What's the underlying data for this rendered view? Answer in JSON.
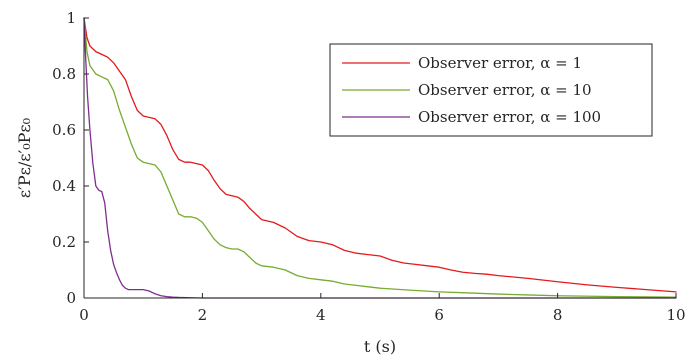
{
  "chart_data": {
    "type": "line",
    "title": "",
    "xlabel": "t (s)",
    "ylabel": "ε′Pε/ε′₀Pε₀",
    "xlim": [
      0,
      10
    ],
    "ylim": [
      0,
      1
    ],
    "xticks": [
      "0",
      "2",
      "4",
      "6",
      "8",
      "10"
    ],
    "yticks": [
      "0",
      "0.2",
      "0.4",
      "0.6",
      "0.8",
      "1"
    ],
    "grid": false,
    "legend_position": "top-right",
    "series": [
      {
        "name": "Observer error, α = 1",
        "color": "#e41a1c",
        "x": [
          0,
          0.05,
          0.1,
          0.2,
          0.3,
          0.4,
          0.5,
          0.6,
          0.7,
          0.8,
          0.9,
          1.0,
          1.1,
          1.2,
          1.3,
          1.4,
          1.5,
          1.6,
          1.7,
          1.8,
          1.9,
          2.0,
          2.1,
          2.2,
          2.3,
          2.4,
          2.5,
          2.6,
          2.7,
          2.8,
          2.9,
          3.0,
          3.2,
          3.4,
          3.6,
          3.8,
          4.0,
          4.2,
          4.4,
          4.6,
          4.8,
          5.0,
          5.2,
          5.4,
          5.6,
          5.8,
          6.0,
          6.2,
          6.4,
          6.6,
          6.8,
          7.0,
          7.5,
          8.0,
          8.5,
          9.0,
          9.5,
          10.0
        ],
        "y": [
          1.0,
          0.93,
          0.9,
          0.88,
          0.87,
          0.86,
          0.84,
          0.81,
          0.78,
          0.72,
          0.67,
          0.65,
          0.645,
          0.64,
          0.62,
          0.58,
          0.53,
          0.495,
          0.485,
          0.485,
          0.48,
          0.475,
          0.455,
          0.42,
          0.39,
          0.37,
          0.365,
          0.36,
          0.345,
          0.32,
          0.3,
          0.28,
          0.27,
          0.25,
          0.22,
          0.205,
          0.2,
          0.19,
          0.17,
          0.16,
          0.155,
          0.15,
          0.135,
          0.125,
          0.12,
          0.115,
          0.11,
          0.1,
          0.092,
          0.088,
          0.085,
          0.08,
          0.07,
          0.058,
          0.047,
          0.038,
          0.03,
          0.022
        ]
      },
      {
        "name": "Observer error, α = 10",
        "color": "#77ac30",
        "x": [
          0,
          0.05,
          0.1,
          0.2,
          0.3,
          0.4,
          0.5,
          0.6,
          0.7,
          0.8,
          0.9,
          1.0,
          1.1,
          1.2,
          1.3,
          1.4,
          1.5,
          1.6,
          1.7,
          1.8,
          1.9,
          2.0,
          2.1,
          2.2,
          2.3,
          2.4,
          2.5,
          2.6,
          2.7,
          2.8,
          2.9,
          3.0,
          3.2,
          3.4,
          3.6,
          3.8,
          4.0,
          4.2,
          4.4,
          4.6,
          4.8,
          5.0,
          5.5,
          6.0,
          6.5,
          7.0,
          7.5,
          8.0,
          9.0,
          10.0
        ],
        "y": [
          1.0,
          0.88,
          0.83,
          0.8,
          0.79,
          0.78,
          0.74,
          0.67,
          0.61,
          0.55,
          0.5,
          0.485,
          0.48,
          0.475,
          0.45,
          0.4,
          0.35,
          0.3,
          0.29,
          0.29,
          0.285,
          0.27,
          0.24,
          0.21,
          0.19,
          0.18,
          0.175,
          0.175,
          0.165,
          0.145,
          0.125,
          0.115,
          0.11,
          0.1,
          0.08,
          0.07,
          0.065,
          0.06,
          0.05,
          0.045,
          0.04,
          0.035,
          0.028,
          0.022,
          0.018,
          0.014,
          0.011,
          0.008,
          0.005,
          0.003
        ]
      },
      {
        "name": "Observer error, α = 100",
        "color": "#7e2f8e",
        "x": [
          0,
          0.03,
          0.06,
          0.1,
          0.15,
          0.2,
          0.25,
          0.3,
          0.35,
          0.4,
          0.45,
          0.5,
          0.55,
          0.6,
          0.65,
          0.7,
          0.75,
          0.8,
          0.9,
          1.0,
          1.1,
          1.2,
          1.3,
          1.4,
          1.5,
          1.6,
          1.8,
          2.0,
          3.0,
          4.0,
          6.0,
          8.0,
          10.0
        ],
        "y": [
          1.0,
          0.85,
          0.72,
          0.6,
          0.48,
          0.4,
          0.385,
          0.38,
          0.34,
          0.24,
          0.17,
          0.12,
          0.09,
          0.065,
          0.045,
          0.035,
          0.03,
          0.03,
          0.03,
          0.03,
          0.025,
          0.015,
          0.008,
          0.005,
          0.003,
          0.002,
          0.001,
          0.0,
          0.0,
          0.0,
          0.0,
          0.0,
          0.0
        ]
      }
    ]
  }
}
